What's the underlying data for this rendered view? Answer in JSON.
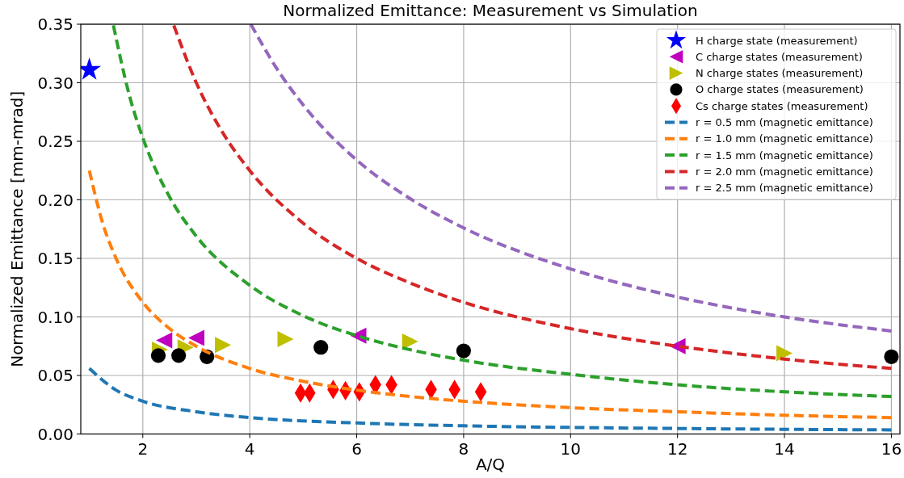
{
  "chart_data": {
    "type": "scatter",
    "title": "Normalized Emittance: Measurement vs Simulation",
    "xlabel": "A/Q",
    "ylabel": "Normalized Emittance [mm-mrad]",
    "xlim": [
      0.84,
      16.16
    ],
    "ylim": [
      0,
      0.35
    ],
    "xticks": [
      2,
      4,
      6,
      8,
      10,
      12,
      14,
      16
    ],
    "yticks": [
      {
        "value": 0,
        "label": "0.00"
      },
      0.05,
      {
        "value": 0.1,
        "label": "0.10"
      },
      0.15,
      {
        "value": 0.2,
        "label": "0.20"
      },
      0.25,
      {
        "value": 0.3,
        "label": "0.30"
      },
      0.35
    ],
    "grid": true,
    "legend": "top right",
    "series": [
      {
        "name": "H charge state (measurement)",
        "marker": "star",
        "color": "#0000ff",
        "x": [
          1
        ],
        "values": [
          0.311
        ]
      },
      {
        "name": "C charge states (measurement)",
        "marker": "triangle-left",
        "color": "#bf00bf",
        "x": [
          2.4,
          3.0,
          6.03,
          12
        ],
        "values": [
          0.08,
          0.082,
          0.084,
          0.075
        ]
      },
      {
        "name": "N charge states (measurement)",
        "marker": "triangle-right",
        "color": "#bfbf00",
        "x": [
          2.32,
          2.8,
          3.5,
          4.67,
          7.0,
          14
        ],
        "values": [
          0.072,
          0.074,
          0.076,
          0.081,
          0.079,
          0.069
        ]
      },
      {
        "name": "O charge states (measurement)",
        "marker": "circle",
        "color": "#000000",
        "x": [
          2.29,
          2.67,
          3.2,
          5.33,
          8,
          16
        ],
        "values": [
          0.067,
          0.067,
          0.066,
          0.074,
          0.071,
          0.066
        ]
      },
      {
        "name": "Cs charge states (measurement)",
        "marker": "diamond",
        "color": "#ff0000",
        "x": [
          4.95,
          5.12,
          5.56,
          5.79,
          6.05,
          6.35,
          6.65,
          7.39,
          7.83,
          8.32
        ],
        "values": [
          0.035,
          0.035,
          0.038,
          0.037,
          0.036,
          0.042,
          0.042,
          0.038,
          0.038,
          0.036
        ]
      },
      {
        "name": "r = 0.5 mm (magnetic emittance)",
        "type": "line",
        "line_style": "dashed",
        "marker": "none",
        "color": "#1f77b4",
        "x": [
          1,
          1.5,
          2,
          3,
          4,
          6,
          8,
          10,
          12,
          14,
          16
        ],
        "values": [
          0.056,
          0.0375,
          0.028,
          0.019,
          0.014,
          0.0094,
          0.007,
          0.0056,
          0.0047,
          0.004,
          0.0035
        ]
      },
      {
        "name": "r = 1.0 mm (magnetic emittance)",
        "type": "line",
        "line_style": "dashed",
        "marker": "none",
        "color": "#ff7f0e",
        "x": [
          1,
          1.25,
          1.5,
          2,
          2.5,
          3,
          4,
          5,
          6,
          7,
          8,
          10,
          12,
          14,
          16
        ],
        "values": [
          0.225,
          0.18,
          0.15,
          0.1125,
          0.09,
          0.075,
          0.056,
          0.045,
          0.0375,
          0.032,
          0.028,
          0.0225,
          0.019,
          0.016,
          0.014
        ]
      },
      {
        "name": "r = 1.5 mm (magnetic emittance)",
        "type": "line",
        "line_style": "dashed",
        "marker": "none",
        "color": "#2ca02c",
        "x": [
          1.45,
          1.75,
          2,
          2.5,
          3,
          4,
          5,
          6,
          7,
          8,
          10,
          12,
          14,
          16
        ],
        "values": [
          0.349,
          0.289,
          0.253,
          0.2025,
          0.169,
          0.127,
          0.101,
          0.084,
          0.072,
          0.063,
          0.051,
          0.042,
          0.036,
          0.032
        ]
      },
      {
        "name": "r = 2.0 mm (magnetic emittance)",
        "type": "line",
        "line_style": "dashed",
        "marker": "none",
        "color": "#d62728",
        "x": [
          2.58,
          3,
          3.5,
          4,
          5,
          6,
          7,
          8,
          10,
          12,
          14,
          16
        ],
        "values": [
          0.349,
          0.3,
          0.257,
          0.225,
          0.18,
          0.15,
          0.129,
          0.1125,
          0.09,
          0.075,
          0.064,
          0.056
        ]
      },
      {
        "name": "r = 2.5 mm (magnetic emittance)",
        "type": "line",
        "line_style": "dashed",
        "marker": "none",
        "color": "#9467bd",
        "x": [
          4.02,
          4.5,
          5,
          6,
          7,
          8,
          10,
          12,
          14,
          16
        ],
        "values": [
          0.35,
          0.3125,
          0.281,
          0.234,
          0.201,
          0.176,
          0.141,
          0.117,
          0.1,
          0.088
        ]
      }
    ]
  }
}
